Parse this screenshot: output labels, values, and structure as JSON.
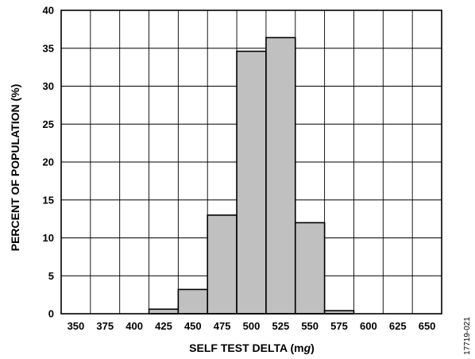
{
  "chart_data": {
    "type": "bar",
    "title": "",
    "xlabel": "SELF TEST DELTA (mg)",
    "xlabel_parts": [
      "SELF TEST DELTA (m",
      "g",
      ")"
    ],
    "ylabel": "PERCENT OF POPULATION (%)",
    "figure_id": "17719-021",
    "categories": [
      "350",
      "375",
      "400",
      "425",
      "450",
      "475",
      "500",
      "525",
      "550",
      "575",
      "600",
      "625",
      "650"
    ],
    "values": [
      0,
      0,
      0,
      0.6,
      3.2,
      13.0,
      34.6,
      36.4,
      12.0,
      0.4,
      0,
      0,
      0
    ],
    "ylim": [
      0,
      40
    ],
    "yticks": [
      "0",
      "5",
      "10",
      "15",
      "20",
      "25",
      "30",
      "35",
      "40"
    ],
    "grid": true,
    "bar_fill": "#c0c0c0",
    "bar_stroke": "#000000"
  }
}
